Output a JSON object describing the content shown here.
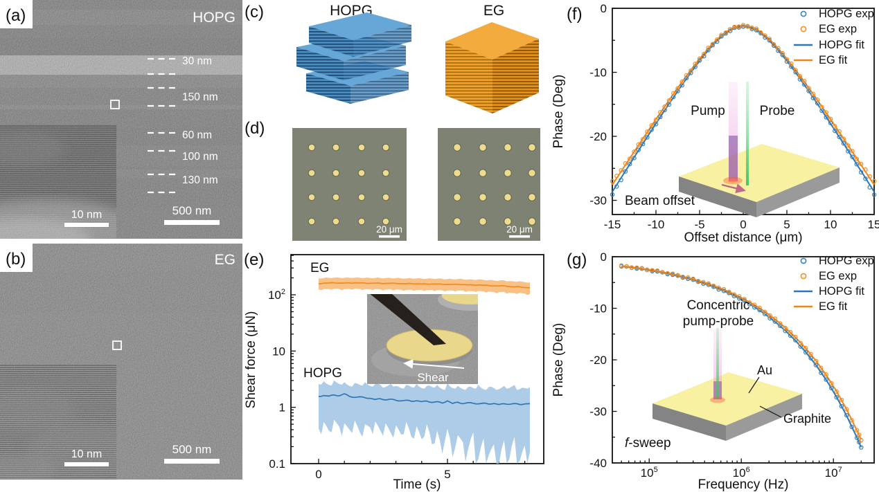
{
  "panels": {
    "a": {
      "label": "(a)",
      "title": "HOPG",
      "thickness_labels": [
        "30 nm",
        "150 nm",
        "60 nm",
        "100 nm",
        "130 nm"
      ],
      "inset_scalebar": "10 nm",
      "scalebar": "500 nm"
    },
    "b": {
      "label": "(b)",
      "title": "EG",
      "inset_scalebar": "10 nm",
      "scalebar": "500 nm"
    },
    "c": {
      "label": "(c)",
      "left_title": "HOPG",
      "right_title": "EG",
      "left_color": "#3d85c0",
      "right_color": "#f59a1f"
    },
    "d": {
      "label": "(d)",
      "dot_grid": "4x4",
      "scalebar_left": "20 μm",
      "scalebar_right": "20 μm"
    },
    "e": {
      "label": "(e)",
      "inset_shear_label": "Shear"
    },
    "f": {
      "label": "(f)"
    },
    "g": {
      "label": "(g)"
    }
  },
  "chart_data": [
    {
      "type": "line",
      "panel": "e",
      "xlabel": "Time (s)",
      "ylabel": "Shear force (μN)",
      "yscale": "log",
      "ylim": [
        0.1,
        500
      ],
      "xticks": [
        0,
        5
      ],
      "yticks": [
        {
          "v": 0.1,
          "t": "0.1"
        },
        {
          "v": 1,
          "t": "1"
        },
        {
          "v": 10,
          "t": "10"
        },
        {
          "v": 100,
          "t": "10",
          "sup": "2"
        }
      ],
      "time_start": 0,
      "time_step": 0.2,
      "series": [
        {
          "name": "EG",
          "color": "#ef8c1c",
          "band_color": "#f9be7e",
          "mean": [
            158,
            161,
            162,
            163,
            162,
            161,
            162,
            163,
            162,
            161,
            160,
            161,
            160,
            159,
            160,
            159,
            158,
            157,
            158,
            157,
            156,
            155,
            156,
            155,
            154,
            153,
            152,
            153,
            152,
            150,
            149,
            150,
            148,
            146,
            144,
            143,
            145,
            140,
            138,
            139,
            135,
            133
          ],
          "upper": [
            196,
            199,
            200,
            202,
            201,
            200,
            201,
            202,
            201,
            200,
            199,
            200,
            199,
            198,
            199,
            198,
            196,
            195,
            196,
            195,
            194,
            193,
            194,
            193,
            192,
            190,
            189,
            190,
            189,
            187,
            185,
            187,
            184,
            182,
            180,
            178,
            181,
            175,
            172,
            174,
            168,
            166
          ],
          "lower": [
            124,
            126,
            127,
            128,
            127,
            126,
            127,
            128,
            127,
            126,
            125,
            126,
            125,
            124,
            125,
            124,
            123,
            122,
            123,
            122,
            122,
            121,
            122,
            121,
            120,
            119,
            119,
            119,
            119,
            117,
            116,
            117,
            115,
            114,
            112,
            111,
            113,
            109,
            107,
            108,
            105,
            103
          ]
        },
        {
          "name": "HOPG",
          "color": "#2e75b5",
          "band_color": "#a9c9e6",
          "mean": [
            1.55,
            1.62,
            1.58,
            1.66,
            1.6,
            1.74,
            1.56,
            1.5,
            1.54,
            1.48,
            1.44,
            1.38,
            1.42,
            1.35,
            1.4,
            1.33,
            1.3,
            1.34,
            1.28,
            1.31,
            1.26,
            1.29,
            1.22,
            1.26,
            1.19,
            1.3,
            1.17,
            1.23,
            1.16,
            1.21,
            1.18,
            1.15,
            1.19,
            1.14,
            1.17,
            1.12,
            1.16,
            1.13,
            1.17,
            1.12,
            1.15,
            1.16
          ],
          "upper": [
            2.6,
            2.9,
            2.5,
            3.0,
            2.6,
            2.8,
            2.4,
            2.7,
            2.5,
            2.8,
            2.4,
            2.6,
            2.5,
            2.3,
            2.6,
            2.4,
            2.2,
            2.5,
            2.3,
            2.6,
            2.2,
            2.4,
            2.3,
            2.5,
            2.1,
            2.7,
            2.2,
            2.4,
            2.1,
            2.3,
            2.2,
            2.5,
            2.1,
            2.3,
            2.2,
            2.1,
            2.4,
            2.2,
            2.5,
            2.1,
            2.2,
            2.3
          ],
          "lower": [
            0.42,
            0.55,
            0.38,
            0.6,
            0.45,
            0.52,
            0.4,
            0.58,
            0.36,
            0.5,
            0.44,
            0.56,
            0.38,
            0.52,
            0.35,
            0.48,
            0.33,
            0.55,
            0.3,
            0.46,
            0.27,
            0.5,
            0.22,
            0.38,
            0.15,
            0.42,
            0.13,
            0.32,
            0.24,
            0.18,
            0.36,
            0.12,
            0.28,
            0.14,
            0.22,
            0.1,
            0.26,
            0.12,
            0.3,
            0.11,
            0.21,
            0.16
          ]
        }
      ]
    },
    {
      "type": "scatter+line",
      "panel": "f",
      "xlabel": "Offset distance (μm)",
      "ylabel": "Phase (Deg)",
      "xlim": [
        -15,
        15
      ],
      "ylim": [
        -32.2,
        0
      ],
      "xticks": [
        -15,
        -10,
        -5,
        0,
        5,
        10,
        15
      ],
      "yticks": [
        0,
        -10,
        -20,
        -30
      ],
      "x_abs_step": 0.5,
      "hopg_fit_half": [
        -2.85,
        -2.92,
        -3.13,
        -3.46,
        -3.91,
        -4.46,
        -5.09,
        -5.8,
        -6.56,
        -7.38,
        -8.23,
        -9.12,
        -10.04,
        -10.99,
        -11.95,
        -12.93,
        -13.92,
        -14.93,
        -15.95,
        -16.98,
        -18.01,
        -19.06,
        -20.11,
        -21.16,
        -22.22,
        -23.29,
        -24.36,
        -25.43,
        -26.5,
        -27.58,
        -28.66
      ],
      "eg_fit_half": [
        -2.7,
        -2.77,
        -2.97,
        -3.29,
        -3.72,
        -4.25,
        -4.86,
        -5.54,
        -6.28,
        -7.07,
        -7.89,
        -8.75,
        -9.64,
        -10.55,
        -11.47,
        -12.42,
        -13.38,
        -14.35,
        -15.33,
        -16.33,
        -17.32,
        -18.33,
        -19.34,
        -20.36,
        -21.38,
        -22.41,
        -23.44,
        -24.47,
        -25.51,
        -26.55,
        -27.59
      ],
      "legend": [
        {
          "label": "HOPG exp",
          "color": "#3583bd",
          "marker": "circle"
        },
        {
          "label": "EG exp",
          "color": "#f28e24",
          "marker": "circle"
        },
        {
          "label": "HOPG fit",
          "color": "#2e75b5",
          "marker": "line"
        },
        {
          "label": "EG fit",
          "color": "#f08418",
          "marker": "line"
        }
      ],
      "annotation": "Beam offset",
      "inset": {
        "pump": "Pump",
        "probe": "Probe"
      }
    },
    {
      "type": "scatter+line",
      "panel": "g",
      "xlabel": "Frequency (Hz)",
      "ylabel": "Phase (Deg)",
      "xscale": "log",
      "ylim": [
        -40,
        0
      ],
      "xticks": [
        {
          "v": 100000,
          "t": "10",
          "sup": "5"
        },
        {
          "v": 1000000,
          "t": "10",
          "sup": "6"
        },
        {
          "v": 10000000,
          "t": "10",
          "sup": "7"
        }
      ],
      "yticks": [
        0,
        -10,
        -20,
        -30,
        -40
      ],
      "freq": [
        50000,
        64600,
        83400,
        108000,
        139000,
        180000,
        232000,
        300000,
        387000,
        500000,
        646000,
        834000,
        1080000,
        1390000,
        1800000,
        2320000,
        3000000,
        3870000,
        5000000,
        6460000,
        8340000,
        10800000,
        13900000,
        18000000,
        20000000
      ],
      "hopg": [
        -1.85,
        -2.1,
        -2.39,
        -2.72,
        -3.08,
        -3.51,
        -3.98,
        -4.53,
        -5.14,
        -5.85,
        -6.65,
        -7.55,
        -8.59,
        -9.75,
        -11.1,
        -12.6,
        -14.32,
        -16.27,
        -18.49,
        -21.02,
        -23.88,
        -27.18,
        -30.83,
        -35.09,
        -36.98
      ],
      "eg": [
        -1.78,
        -2.02,
        -2.29,
        -2.61,
        -2.96,
        -3.37,
        -3.82,
        -4.35,
        -4.94,
        -5.61,
        -6.38,
        -7.25,
        -8.25,
        -9.36,
        -10.65,
        -12.1,
        -13.75,
        -15.62,
        -17.75,
        -20.18,
        -22.93,
        -26.09,
        -29.6,
        -33.69,
        -35.5
      ],
      "legend": [
        {
          "label": "HOPG exp",
          "color": "#3583bd",
          "marker": "circle"
        },
        {
          "label": "EG exp",
          "color": "#f28e24",
          "marker": "circle"
        },
        {
          "label": "HOPG fit",
          "color": "#2e75b5",
          "marker": "line"
        },
        {
          "label": "EG fit",
          "color": "#f08418",
          "marker": "line"
        }
      ],
      "annotation_prefix": "f",
      "annotation_suffix": "-sweep",
      "inset": {
        "line1": "Concentric",
        "line2": "pump-probe",
        "au": "Au",
        "graphite": "Graphite"
      }
    }
  ]
}
